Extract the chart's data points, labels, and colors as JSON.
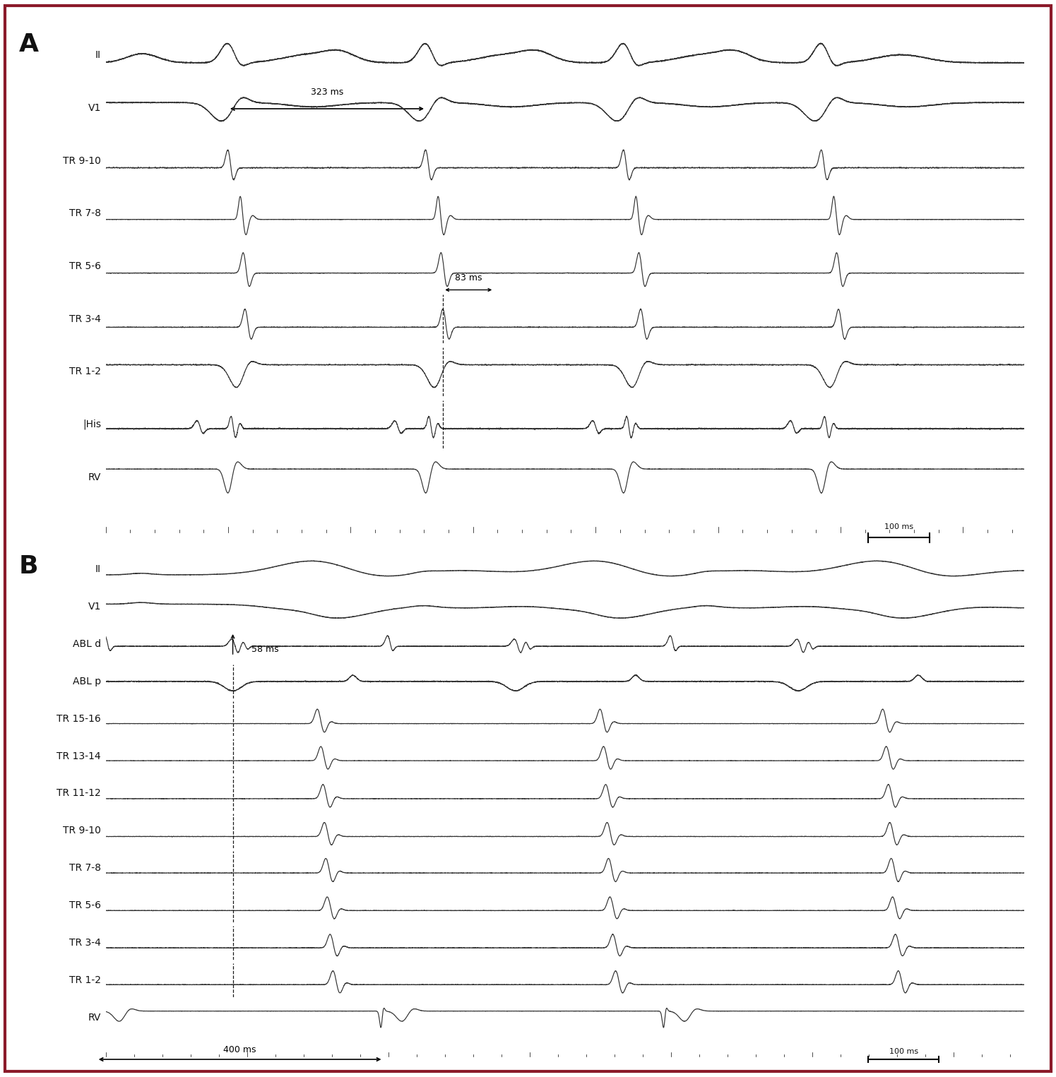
{
  "fig_width": 14.95,
  "fig_height": 15.25,
  "border_color": "#8B1A2A",
  "bg_color": "#FFFFFF",
  "line_color": "#333333",
  "text_color": "#111111",
  "panel_A_label": "A",
  "panel_B_label": "B",
  "panel_A_channels": [
    "II",
    "V1",
    "TR 9-10",
    "TR 7-8",
    "TR 5-6",
    "TR 3-4",
    "TR 1-2",
    "|His",
    "RV"
  ],
  "panel_B_channels": [
    "II",
    "V1",
    "ABL d",
    "ABL p",
    "TR 15-16",
    "TR 13-14",
    "TR 11-12",
    "TR 9-10",
    "TR 7-8",
    "TR 5-6",
    "TR 3-4",
    "TR 1-2",
    "RV"
  ],
  "ann_323": "323 ms",
  "ann_83": "83 ms",
  "ann_58": "58 ms",
  "ann_400": "400 ms",
  "ann_100A": "100 ms",
  "ann_100B": "100 ms",
  "label_fontsize": 10,
  "panel_label_fontsize": 26,
  "ann_fontsize": 9
}
